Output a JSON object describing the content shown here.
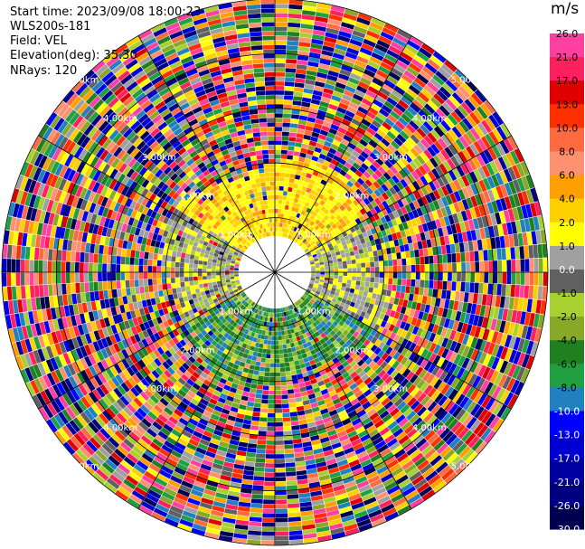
{
  "info": {
    "start_time": "Start time: 2023/09/08 18:00:23",
    "instrument": "WLS200s-181",
    "field": "Field: VEL",
    "elevation": "Elevation(deg): 35.30",
    "nrays": "NRays: 120"
  },
  "colorbar": {
    "unit": "m/s",
    "ticks": [
      "26.0",
      "21.0",
      "17.0",
      "13.0",
      "10.0",
      "8.0",
      "6.0",
      "4.0",
      "2.0",
      "1.0",
      "0.0",
      "-1.0",
      "-2.0",
      "-4.0",
      "-6.0",
      "-8.0",
      "-10.0",
      "-13.0",
      "-17.0",
      "-21.0",
      "-26.0",
      "-30.0"
    ],
    "colors": [
      "#ff40a0",
      "#ff2060",
      "#e00000",
      "#ff3000",
      "#ff6a40",
      "#ff9070",
      "#ffa000",
      "#ffd000",
      "#ffff00",
      "#a0a0a0",
      "#606060",
      "#a8d030",
      "#88a828",
      "#208020",
      "#20a040",
      "#2080c0",
      "#0000ff",
      "#0000d0",
      "#0000a0",
      "#000080",
      "#000050"
    ]
  },
  "chart_data": {
    "type": "heatmap",
    "projection": "polar PPI",
    "field": "VEL",
    "units": "m/s",
    "elevation_deg": 35.3,
    "nrays": 120,
    "range_ring_labels": [
      "1.00km",
      "2.00km",
      "3.00km",
      "4.00km",
      "5.00km"
    ],
    "range_rings_km": [
      1,
      2,
      3,
      4,
      5
    ],
    "max_range_km": 5,
    "value_bounds": [
      -30,
      -26,
      -21,
      -17,
      -13,
      -10,
      -8,
      -6,
      -4,
      -2,
      -1,
      0,
      1,
      2,
      4,
      6,
      8,
      10,
      13,
      17,
      21,
      26
    ],
    "inner_region_pattern": "north: 2.0 to 6.0 (yellow/orange); east-west: -1.0 to 1.0 (grey); south: -2.0 to -8.0 (green)",
    "outer_region_pattern": "noisy, values span full range"
  }
}
